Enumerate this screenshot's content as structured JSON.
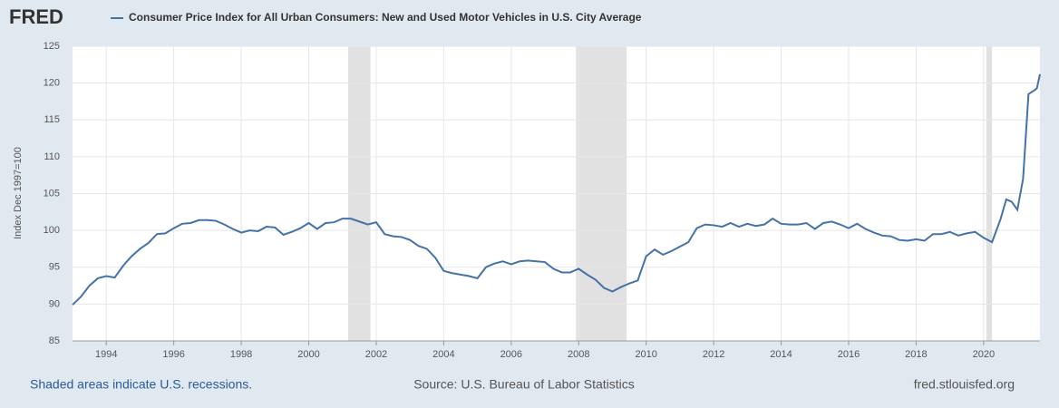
{
  "logo": "FRED",
  "chart_data": {
    "type": "line",
    "ylabel": "Index Dec 1997=100",
    "xlim": [
      1993,
      2021.67
    ],
    "xticks": [
      1994,
      1996,
      1998,
      2000,
      2002,
      2004,
      2006,
      2008,
      2010,
      2012,
      2014,
      2016,
      2018,
      2020
    ],
    "ylim": [
      85,
      125
    ],
    "yticks": [
      85,
      90,
      95,
      100,
      105,
      110,
      115,
      120,
      125
    ],
    "grid": true,
    "recessions": [
      [
        2001.17,
        2001.83
      ],
      [
        2007.92,
        2009.42
      ],
      [
        2020.08,
        2020.25
      ]
    ],
    "x": [
      1993,
      1993.25,
      1993.5,
      1993.75,
      1994,
      1994.25,
      1994.5,
      1994.75,
      1995,
      1995.25,
      1995.5,
      1995.75,
      1996,
      1996.25,
      1996.5,
      1996.75,
      1997,
      1997.25,
      1997.5,
      1997.75,
      1998,
      1998.25,
      1998.5,
      1998.75,
      1999,
      1999.25,
      1999.5,
      1999.75,
      2000,
      2000.25,
      2000.5,
      2000.75,
      2001,
      2001.25,
      2001.5,
      2001.75,
      2002,
      2002.25,
      2002.5,
      2002.75,
      2003,
      2003.25,
      2003.5,
      2003.75,
      2004,
      2004.25,
      2004.5,
      2004.75,
      2005,
      2005.25,
      2005.5,
      2005.75,
      2006,
      2006.25,
      2006.5,
      2006.75,
      2007,
      2007.25,
      2007.5,
      2007.75,
      2008,
      2008.25,
      2008.5,
      2008.75,
      2009,
      2009.25,
      2009.5,
      2009.75,
      2010,
      2010.25,
      2010.5,
      2010.75,
      2011,
      2011.25,
      2011.5,
      2011.75,
      2012,
      2012.25,
      2012.5,
      2012.75,
      2013,
      2013.25,
      2013.5,
      2013.75,
      2014,
      2014.25,
      2014.5,
      2014.75,
      2015,
      2015.25,
      2015.5,
      2015.75,
      2016,
      2016.25,
      2016.5,
      2016.75,
      2017,
      2017.25,
      2017.5,
      2017.75,
      2018,
      2018.25,
      2018.5,
      2018.75,
      2019,
      2019.25,
      2019.5,
      2019.75,
      2020,
      2020.25,
      2020.5,
      2020.67,
      2020.83,
      2021,
      2021.17,
      2021.33,
      2021.5,
      2021.58,
      2021.67
    ],
    "series": [
      {
        "name": "Consumer Price Index for All Urban Consumers: New and Used Motor Vehicles in U.S. City Average",
        "color": "#4572a7",
        "values": [
          89.9,
          91,
          92.5,
          93.5,
          93.8,
          93.6,
          95.2,
          96.5,
          97.5,
          98.3,
          99.5,
          99.6,
          100.3,
          100.9,
          101,
          101.4,
          101.4,
          101.3,
          100.8,
          100.2,
          99.7,
          100,
          99.9,
          100.5,
          100.4,
          99.4,
          99.8,
          100.3,
          101,
          100.2,
          101,
          101.1,
          101.6,
          101.6,
          101.2,
          100.8,
          101.1,
          99.5,
          99.2,
          99.1,
          98.7,
          97.9,
          97.5,
          96.3,
          94.5,
          94.2,
          94,
          93.8,
          93.5,
          95,
          95.5,
          95.8,
          95.4,
          95.8,
          95.9,
          95.8,
          95.7,
          94.8,
          94.3,
          94.3,
          94.8,
          94,
          93.3,
          92.2,
          91.7,
          92.3,
          92.8,
          93.2,
          96.5,
          97.4,
          96.7,
          97.2,
          97.8,
          98.4,
          100.3,
          100.8,
          100.7,
          100.5,
          101,
          100.5,
          100.9,
          100.6,
          100.8,
          101.6,
          100.9,
          100.8,
          100.8,
          101,
          100.2,
          101,
          101.2,
          100.8,
          100.3,
          100.9,
          100.2,
          99.7,
          99.3,
          99.2,
          98.7,
          98.6,
          98.8,
          98.6,
          99.5,
          99.5,
          99.8,
          99.3,
          99.6,
          99.8,
          99,
          98.4,
          101.5,
          104.2,
          103.9,
          102.8,
          107,
          118.5,
          119,
          119.3,
          121.2
        ]
      }
    ]
  },
  "footer": {
    "note": "Shaded areas indicate U.S. recessions.",
    "source": "Source: U.S. Bureau of Labor Statistics",
    "url": "fred.stlouisfed.org"
  }
}
